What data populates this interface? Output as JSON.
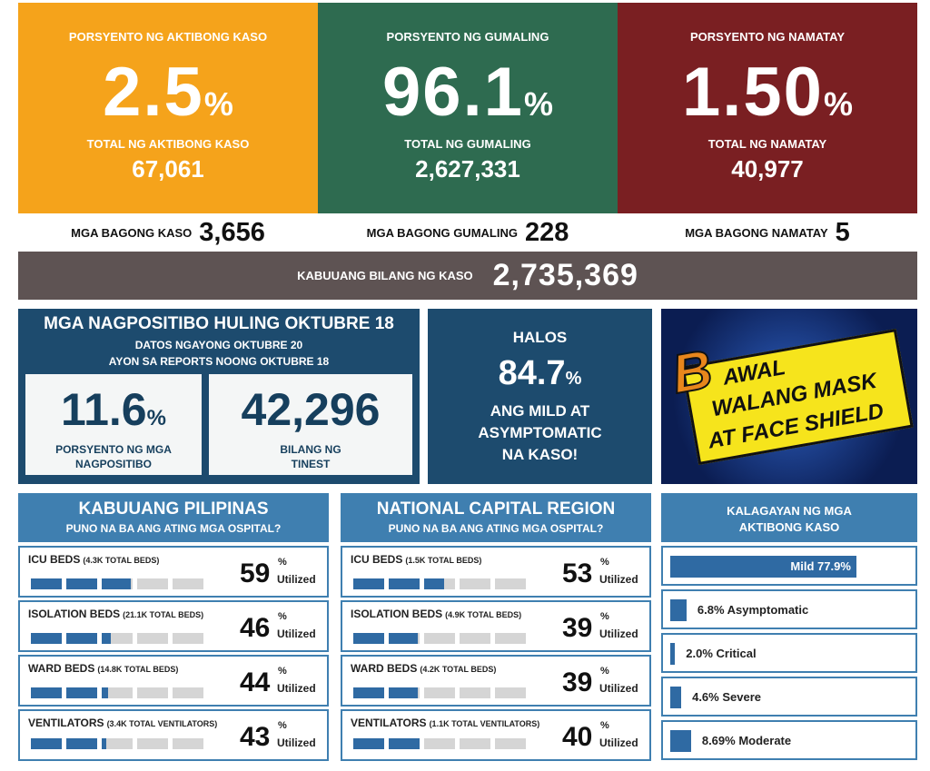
{
  "summary": [
    {
      "label": "PORSYENTO NG AKTIBONG KASO",
      "value": "2.5",
      "total_label": "TOTAL NG AKTIBONG KASO",
      "total": "67,061"
    },
    {
      "label": "PORSYENTO NG GUMALING",
      "value": "96.1",
      "total_label": "TOTAL NG GUMALING",
      "total": "2,627,331"
    },
    {
      "label": "PORSYENTO NG NAMATAY",
      "value": "1.50",
      "total_label": "TOTAL NG NAMATAY",
      "total": "40,977"
    }
  ],
  "percent": "%",
  "new_cases": [
    {
      "label": "MGA BAGONG KASO",
      "value": "3,656"
    },
    {
      "label": "MGA BAGONG GUMALING",
      "value": "228"
    },
    {
      "label": "MGA BAGONG NAMATAY",
      "value": "5"
    }
  ],
  "total_cases": {
    "label": "KABUUANG BILANG NG KASO",
    "value": "2,735,369"
  },
  "positivity": {
    "title": "MGA NAGPOSITIBO HULING OKTUBRE 18",
    "subtitle": [
      "DATOS NGAYONG OKTUBRE 20",
      "AYON SA REPORTS NOONG OKTUBRE 18"
    ],
    "rate": "11.6",
    "rate_label": [
      "PORSYENTO NG MGA",
      "NAGPOSITIBO"
    ],
    "tested": "42,296",
    "tested_label": [
      "BILANG NG",
      "TINEST"
    ]
  },
  "mild": {
    "prefix": "HALOS",
    "value": "84.7",
    "text": [
      "ANG MILD AT",
      "ASYMPTOMATIC",
      "NA KASO!"
    ]
  },
  "banner": {
    "initial": "B",
    "lines": [
      "AWAL",
      "WALANG MASK",
      "AT FACE SHIELD"
    ]
  },
  "utilized": "Utilized",
  "hospitals": [
    {
      "title": "KABUUANG PILIPINAS",
      "subtitle": "PUNO NA BA ANG ATING MGA OSPITAL?",
      "items": [
        {
          "label": "ICU BEDS",
          "capacity": "(4.3K TOTAL BEDS)",
          "value": 59
        },
        {
          "label": "ISOLATION BEDS",
          "capacity": "(21.1K TOTAL BEDS)",
          "value": 46
        },
        {
          "label": "WARD BEDS",
          "capacity": "(14.8K TOTAL BEDS)",
          "value": 44
        },
        {
          "label": "VENTILATORS",
          "capacity": "(3.4K TOTAL VENTILATORS)",
          "value": 43
        }
      ]
    },
    {
      "title": "NATIONAL CAPITAL REGION",
      "subtitle": "PUNO NA BA ANG ATING MGA OSPITAL?",
      "items": [
        {
          "label": "ICU BEDS",
          "capacity": "(1.5K TOTAL BEDS)",
          "value": 53
        },
        {
          "label": "ISOLATION BEDS",
          "capacity": "(4.9K TOTAL BEDS)",
          "value": 39
        },
        {
          "label": "WARD BEDS",
          "capacity": "(4.2K TOTAL BEDS)",
          "value": 39
        },
        {
          "label": "VENTILATORS",
          "capacity": "(1.1K TOTAL VENTILATORS)",
          "value": 40
        }
      ]
    }
  ],
  "status": {
    "title": [
      "KALAGAYAN NG MGA",
      "AKTIBONG KASO"
    ],
    "items": [
      {
        "label": "Mild 77.9%",
        "value": 77.9
      },
      {
        "label": "6.8% Asymptomatic",
        "value": 6.8
      },
      {
        "label": "2.0% Critical",
        "value": 2.0
      },
      {
        "label": "4.6% Severe",
        "value": 4.6
      },
      {
        "label": "8.69% Moderate",
        "value": 8.69
      }
    ]
  }
}
